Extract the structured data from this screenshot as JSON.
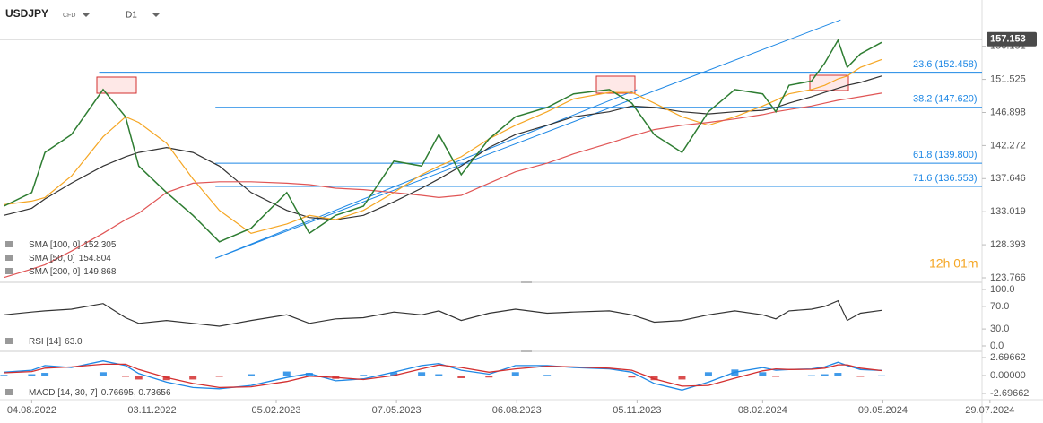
{
  "header": {
    "symbol": "USDJPY",
    "instrument": "CFD",
    "timeframe": "D1",
    "timer": "12h 01m"
  },
  "chart_data": [
    {
      "type": "line",
      "x": [
        "14.07.2022",
        "04.08.2022",
        "14.08.2022",
        "03.09.2022",
        "27.09.2022",
        "14.10.2022",
        "24.10.2022",
        "14.11.2022",
        "04.12.2022",
        "24.12.2022",
        "17.01.2023",
        "13.02.2023",
        "02.03.2023",
        "22.03.2023",
        "12.04.2023",
        "05.05.2023",
        "26.05.2023",
        "08.06.2023",
        "25.06.2023",
        "16.07.2023",
        "05.08.2023",
        "29.08.2023",
        "18.09.2023",
        "15.10.2023",
        "01.11.2023",
        "18.11.2023",
        "09.12.2023",
        "29.12.2023",
        "18.01.2024",
        "08.02.2024",
        "18.02.2024",
        "28.02.2024",
        "16.03.2024",
        "26.03.2024",
        "05.04.2024",
        "12.04.2024",
        "22.04.2024",
        "08.05.2024"
      ],
      "values": [
        133.8,
        135.7,
        141.3,
        143.8,
        150.1,
        146.3,
        139.4,
        135.7,
        132.5,
        128.8,
        130.7,
        135.7,
        130.0,
        132.5,
        133.8,
        140.1,
        139.4,
        143.8,
        138.2,
        143.2,
        146.3,
        147.6,
        149.5,
        150.1,
        148.2,
        143.8,
        141.3,
        147.0,
        150.1,
        149.5,
        147.0,
        150.7,
        151.3,
        153.8,
        157.0,
        153.2,
        155.1,
        156.7
      ],
      "color": "#2e7d32",
      "series": [
        {
          "name": "SMA [100, 0]",
          "last": 152.305,
          "color": "#333333",
          "values": [
            132.5,
            133.5,
            134.8,
            137,
            139.4,
            140.7,
            141.3,
            142,
            141.3,
            139.4,
            135.7,
            133.2,
            132.2,
            131.9,
            132.5,
            134.4,
            136.3,
            137.6,
            139.4,
            142,
            143.8,
            145.1,
            146.3,
            147,
            147.8,
            147.6,
            147,
            146.7,
            147,
            147.2,
            147.6,
            148.2,
            149.1,
            149.7,
            150.3,
            150.7,
            151.1,
            152
          ]
        },
        {
          "name": "SMA [50, 0]",
          "last": 154.804,
          "color": "#f5a623",
          "values": [
            134,
            134.5,
            135,
            138,
            143.5,
            146.3,
            145.5,
            142.6,
            137.6,
            133.2,
            130,
            131.3,
            132.5,
            131.9,
            133.2,
            135.7,
            138.2,
            139.4,
            140.7,
            143.2,
            145.1,
            147,
            148.8,
            149.7,
            149.7,
            148.2,
            146.3,
            145.1,
            146.3,
            147.8,
            148.6,
            149.5,
            150.1,
            150.7,
            151.6,
            152,
            153.2,
            154.3
          ]
        },
        {
          "name": "SMA [200, 0]",
          "last": 149.868,
          "color": "#e05555",
          "values": [
            123.8,
            125,
            125.6,
            127.5,
            130,
            131.9,
            132.8,
            135.7,
            137,
            137.2,
            137.2,
            137,
            136.8,
            136.3,
            136.1,
            135.7,
            135.3,
            135,
            135.3,
            137,
            138.6,
            139.8,
            141.1,
            142.6,
            143.6,
            144.5,
            145.1,
            145.5,
            146,
            146.6,
            147,
            147.3,
            147.8,
            148.2,
            148.6,
            148.8,
            149.1,
            149.6
          ]
        }
      ],
      "last_value": 157.153,
      "levels": [
        {
          "label": "23.6 (152.458)",
          "value": 152.458,
          "start": "24.09.2022"
        },
        {
          "label": "38.2 (147.620)",
          "value": 147.62,
          "start": "21.12.2022"
        },
        {
          "label": "61.8 (139.800)",
          "value": 139.8,
          "start": "21.12.2022"
        },
        {
          "label": "71.6 (136.553)",
          "value": 136.553,
          "start": "21.12.2022"
        }
      ],
      "trend_lines": [
        {
          "x": [
            "21.12.2022",
            "07.04.2024"
          ],
          "y": [
            126.5,
            159.85
          ]
        },
        {
          "x": [
            "21.12.2022",
            "05.11.2023"
          ],
          "y": [
            126.5,
            150.1
          ]
        }
      ],
      "xlim": [
        "11.07.2022",
        "23.07.2024"
      ],
      "ylim": [
        123.515,
        161.126
      ],
      "yticks": [
        123.766,
        128.393,
        133.019,
        137.646,
        142.272,
        146.898,
        151.525,
        156.151
      ]
    },
    {
      "type": "line",
      "x": [
        "14.07.2022",
        "04.08.2022",
        "14.08.2022",
        "03.09.2022",
        "27.09.2022",
        "14.10.2022",
        "24.10.2022",
        "14.11.2022",
        "04.12.2022",
        "24.12.2022",
        "17.01.2023",
        "13.02.2023",
        "02.03.2023",
        "22.03.2023",
        "12.04.2023",
        "05.05.2023",
        "26.05.2023",
        "08.06.2023",
        "25.06.2023",
        "16.07.2023",
        "05.08.2023",
        "29.08.2023",
        "18.09.2023",
        "15.10.2023",
        "01.11.2023",
        "18.11.2023",
        "09.12.2023",
        "29.12.2023",
        "18.01.2024",
        "08.02.2024",
        "18.02.2024",
        "28.02.2024",
        "16.03.2024",
        "26.03.2024",
        "05.04.2024",
        "12.04.2024",
        "22.04.2024",
        "08.05.2024"
      ],
      "series": [
        {
          "name": "RSI [14]",
          "last": 63,
          "last_label": "63.0",
          "color": "#333333",
          "values": [
            55,
            60,
            62,
            65,
            75,
            50,
            40,
            45,
            40,
            35,
            45,
            55,
            40,
            48,
            50,
            60,
            55,
            62,
            45,
            58,
            65,
            58,
            60,
            62,
            55,
            42,
            45,
            55,
            62,
            55,
            48,
            62,
            65,
            70,
            80,
            45,
            58,
            63
          ]
        }
      ],
      "xlim": [
        "11.07.2022",
        "23.07.2024"
      ],
      "ylim": [
        -9.5,
        107.9
      ],
      "yticks": [
        {
          "value": 100,
          "label": "100.0"
        },
        {
          "value": 70,
          "label": "70.0"
        },
        {
          "value": 30,
          "label": "30.0"
        },
        {
          "value": 0,
          "label": "0.0"
        }
      ]
    },
    {
      "type": "macd",
      "title": "MACD [14, 30, 7]",
      "last": [
        0.76695,
        0.73656
      ],
      "value_labels": "0.76695, 0.73656",
      "x": [
        "14.07.2022",
        "04.08.2022",
        "14.08.2022",
        "03.09.2022",
        "27.09.2022",
        "14.10.2022",
        "24.10.2022",
        "14.11.2022",
        "04.12.2022",
        "24.12.2022",
        "17.01.2023",
        "13.02.2023",
        "02.03.2023",
        "22.03.2023",
        "12.04.2023",
        "05.05.2023",
        "26.05.2023",
        "08.06.2023",
        "25.06.2023",
        "16.07.2023",
        "05.08.2023",
        "29.08.2023",
        "18.09.2023",
        "15.10.2023",
        "01.11.2023",
        "18.11.2023",
        "09.12.2023",
        "29.12.2023",
        "18.01.2024",
        "08.02.2024",
        "18.02.2024",
        "28.02.2024",
        "16.03.2024",
        "26.03.2024",
        "05.04.2024",
        "12.04.2024",
        "22.04.2024",
        "08.05.2024"
      ],
      "series": [
        {
          "color": "#1e88e5",
          "values": [
            0.5,
            0.8,
            1.5,
            1.2,
            2.2,
            1.5,
            0.3,
            -1.0,
            -1.8,
            -2.0,
            -1.5,
            -0.3,
            0.3,
            -0.8,
            -0.5,
            0.5,
            1.5,
            1.8,
            0.8,
            0.2,
            1.5,
            1.5,
            1.2,
            1.0,
            0.5,
            -1.2,
            -2.2,
            -1.0,
            0.5,
            1.2,
            0.8,
            0.9,
            1.0,
            1.3,
            2.0,
            1.5,
            0.9,
            0.77
          ]
        },
        {
          "color": "#d32f2f",
          "values": [
            0.4,
            0.6,
            1.1,
            1.3,
            1.7,
            1.7,
            0.9,
            -0.3,
            -1.2,
            -1.8,
            -1.7,
            -0.9,
            -0.1,
            -0.3,
            -0.6,
            0.0,
            1.0,
            1.6,
            1.2,
            0.5,
            1.0,
            1.4,
            1.3,
            1.1,
            0.8,
            -0.5,
            -1.6,
            -1.5,
            -0.4,
            0.7,
            1.0,
            0.9,
            0.95,
            1.1,
            1.6,
            1.6,
            1.1,
            0.74
          ]
        }
      ],
      "histogram": {
        "color": "#1e88e5",
        "negative_color": "#d32f2f",
        "values": [
          0.1,
          0.2,
          0.4,
          -0.1,
          0.5,
          -0.2,
          -0.6,
          -0.7,
          -0.6,
          -0.2,
          0.2,
          0.6,
          0.4,
          -0.5,
          0.1,
          0.5,
          0.5,
          0.2,
          -0.4,
          -0.3,
          0.5,
          0.1,
          -0.1,
          -0.1,
          -0.3,
          -0.7,
          -0.6,
          0.5,
          0.9,
          0.5,
          -0.2,
          0.0,
          0.05,
          0.2,
          0.4,
          -0.1,
          -0.2,
          0.03
        ]
      },
      "xlim": [
        "11.07.2022",
        "23.07.2024"
      ],
      "ylim": [
        -3.504,
        3.235
      ],
      "yticks": [
        2.69662,
        {
          "value": 0,
          "label": "0.00000"
        },
        -2.69662
      ],
      "xticks": [
        "04.08.2022",
        "03.11.2022",
        "05.02.2023",
        "07.05.2023",
        "06.08.2023",
        "05.11.2023",
        "08.02.2024",
        "09.05.2024",
        "29.07.2024"
      ]
    }
  ]
}
